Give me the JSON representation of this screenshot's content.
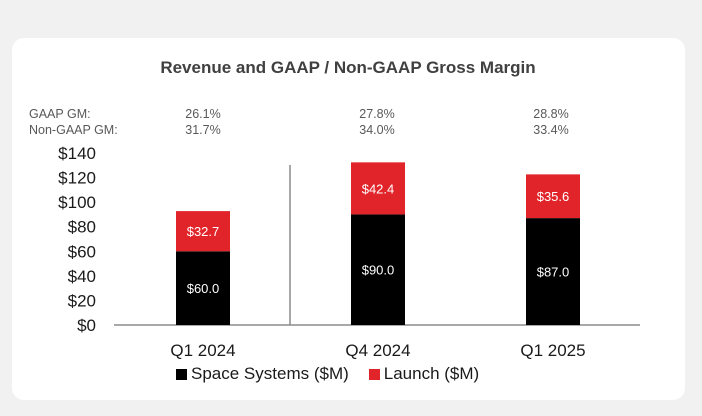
{
  "chart_data": {
    "type": "bar",
    "stacked": true,
    "title": "Revenue and GAAP / Non-GAAP Gross Margin",
    "categories": [
      "Q1 2024",
      "Q4 2024",
      "Q1 2025"
    ],
    "series": [
      {
        "name": "Space Systems ($M)",
        "color": "#000000",
        "values": [
          60.0,
          90.0,
          87.0
        ],
        "labels": [
          "$60.0",
          "$90.0",
          "$87.0"
        ]
      },
      {
        "name": "Launch ($M)",
        "color": "#e0242a",
        "values": [
          32.7,
          42.4,
          35.6
        ],
        "labels": [
          "$32.7",
          "$42.4",
          "$35.6"
        ]
      }
    ],
    "ylim": [
      0,
      140
    ],
    "yticks": [
      "$0",
      "$20",
      "$40",
      "$60",
      "$80",
      "$100",
      "$120",
      "$140"
    ],
    "ytick_values": [
      0,
      20,
      40,
      60,
      80,
      100,
      120,
      140
    ],
    "gross_margin": {
      "gaap_label": "GAAP GM:",
      "non_gaap_label": "Non-GAAP GM:",
      "gaap": [
        "26.1%",
        "27.8%",
        "28.8%"
      ],
      "non_gaap": [
        "31.7%",
        "34.0%",
        "33.4%"
      ]
    },
    "legend_position": "bottom"
  }
}
